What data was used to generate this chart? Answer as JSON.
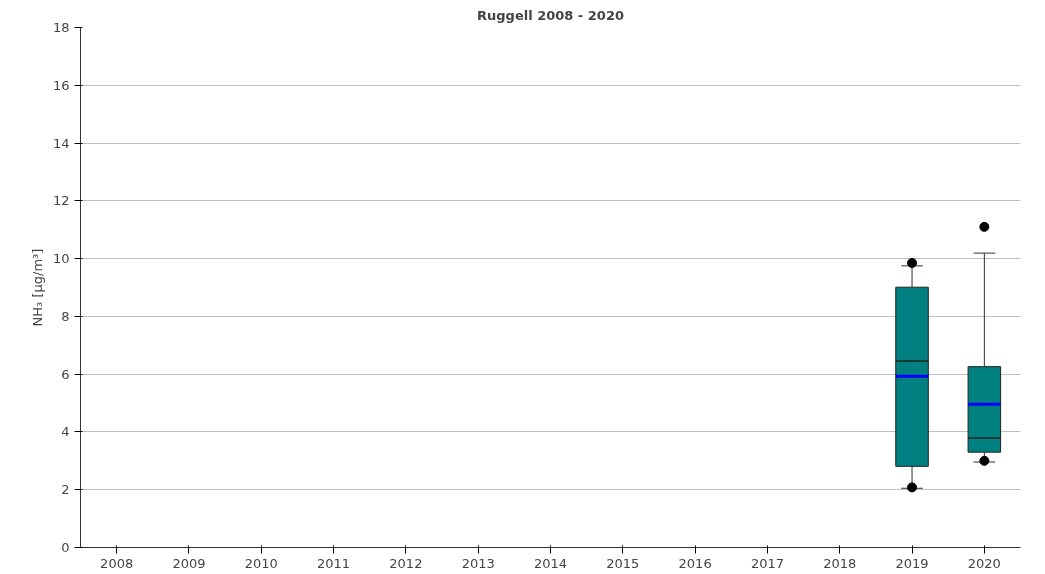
{
  "chart_data": {
    "type": "box",
    "title": "Ruggell 2008 - 2020",
    "ylabel": "NH₃ [µg/m³]",
    "categories": [
      "2008",
      "2009",
      "2010",
      "2011",
      "2012",
      "2013",
      "2014",
      "2015",
      "2016",
      "2017",
      "2018",
      "2019",
      "2020"
    ],
    "color": "#008080",
    "boxes": [
      null,
      null,
      null,
      null,
      null,
      null,
      null,
      null,
      null,
      null,
      null,
      {
        "low": 2.05,
        "q1": 2.81,
        "median": 6.46,
        "q3": 9.01,
        "high": 9.75,
        "mean": 5.93,
        "outliers": [
          9.85,
          2.08
        ]
      },
      {
        "low": 2.96,
        "q1": 3.3,
        "median": 3.79,
        "q3": 6.26,
        "high": 10.19,
        "mean": 4.96,
        "outliers": [
          11.1,
          3.0
        ]
      }
    ],
    "ylim": [
      0,
      18
    ],
    "yticks": [
      0,
      2,
      4,
      6,
      8,
      10,
      12,
      14,
      16,
      18
    ],
    "grid": "y"
  }
}
